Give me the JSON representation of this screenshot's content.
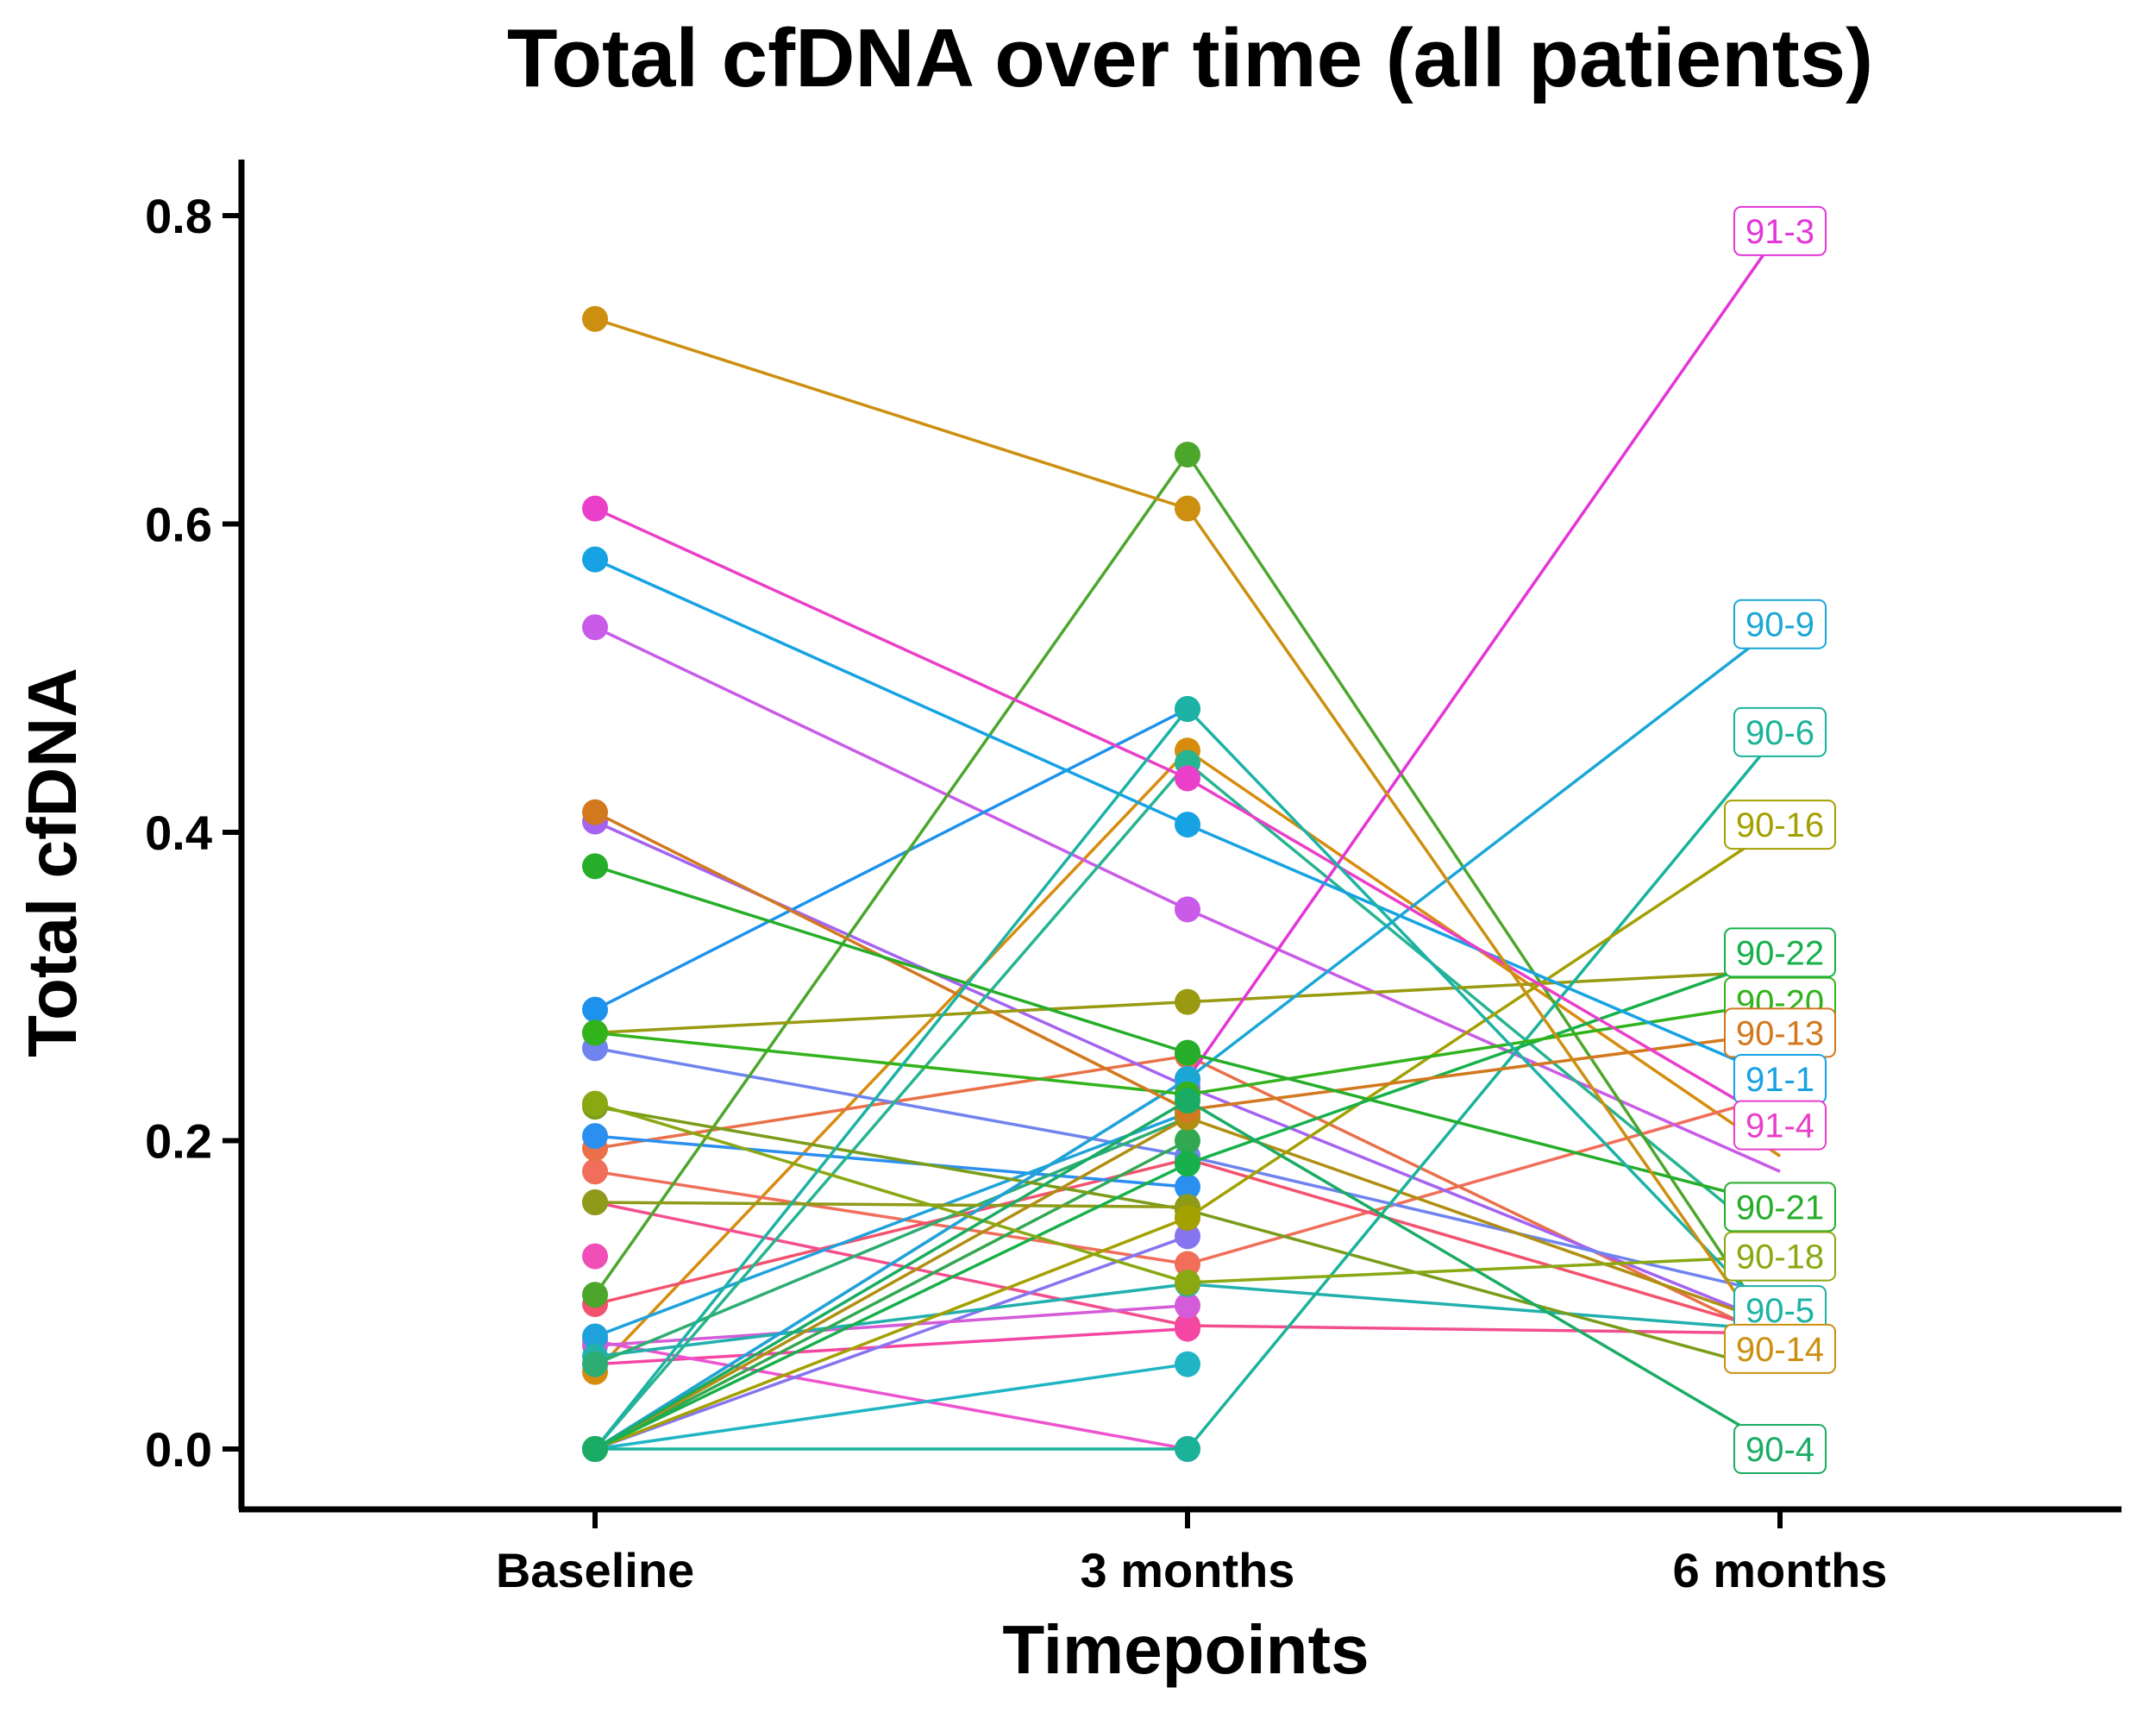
{
  "chart_data": {
    "type": "line",
    "title": "Total cfDNA over time (all patients)",
    "xlabel": "Timepoints",
    "ylabel": "Total cfDNA",
    "categories": [
      "Baseline",
      "3 months",
      "6 months"
    ],
    "ylim": [
      -0.04,
      0.83
    ],
    "yticks": [
      0.0,
      0.2,
      0.4,
      0.6,
      0.8
    ],
    "ytick_labels": [
      "0.0",
      "0.2",
      "0.4",
      "0.6",
      "0.8"
    ],
    "grid": false,
    "legend": "none",
    "series": [
      {
        "name": "91-3",
        "color": "#e335d8",
        "values": [
          0.0,
          0.24,
          0.79
        ]
      },
      {
        "name": "90-9",
        "color": "#1aa7d6",
        "values": [
          0.0,
          0.24,
          0.535
        ]
      },
      {
        "name": "90-6",
        "color": "#1ab39a",
        "values": [
          0.0,
          0.0,
          0.465
        ]
      },
      {
        "name": "90-16",
        "color": "#a3a000",
        "values": [
          0.0,
          0.15,
          0.405
        ]
      },
      {
        "name": "90-22",
        "color": "#17b04a",
        "values": [
          0.0,
          0.185,
          0.32
        ]
      },
      {
        "name": "90-20",
        "color": "#32b31c",
        "values": [
          0.27,
          0.23,
          0.29
        ]
      },
      {
        "name": "90-13",
        "color": "#d2781e",
        "values": [
          0.413,
          0.22,
          0.27
        ]
      },
      {
        "name": "91-1",
        "color": "#16a2e3",
        "values": [
          0.577,
          0.405,
          0.24
        ]
      },
      {
        "name": "91-4",
        "color": "#ea3fc8",
        "values": [
          0.61,
          0.435,
          0.21
        ]
      },
      {
        "name": "90-21",
        "color": "#26ad2a",
        "values": [
          0.378,
          0.257,
          0.158
        ]
      },
      {
        "name": "90-18",
        "color": "#8aa812",
        "values": [
          0.224,
          0.108,
          0.125
        ]
      },
      {
        "name": "90-5",
        "color": "#1cb2a5",
        "values": [
          0.0,
          0.48,
          0.08
        ]
      },
      {
        "name": "90-14",
        "color": "#cc8f10",
        "values": [
          0.733,
          0.61,
          0.06
        ]
      },
      {
        "name": "90-4",
        "color": "#1aac64",
        "values": [
          0.0,
          0.226,
          0.0
        ]
      }
    ],
    "extra_series": [
      {
        "color": "#d78c0e",
        "values": [
          0.05,
          0.453,
          0.19
        ]
      },
      {
        "color": "#f06e5a",
        "values": [
          0.18,
          0.12,
          0.23
        ]
      },
      {
        "color": "#e97048",
        "values": [
          0.195,
          0.255,
          0.07
        ]
      },
      {
        "color": "#f2526e",
        "values": [
          0.094,
          0.188,
          0.075
        ]
      },
      {
        "color": "#f24e8e",
        "values": [
          0.16,
          0.08,
          0.075
        ]
      },
      {
        "color": "#f446a3",
        "values": [
          0.055,
          0.078,
          null
        ]
      },
      {
        "color": "#f04fb5",
        "values": [
          0.125,
          null,
          null
        ]
      },
      {
        "color": "#ee53ce",
        "values": [
          0.07,
          0.0,
          null
        ]
      },
      {
        "color": "#c95be8",
        "values": [
          0.533,
          0.35,
          0.18
        ]
      },
      {
        "color": "#a463f0",
        "values": [
          0.407,
          0.235,
          0.08
        ]
      },
      {
        "color": "#8675ef",
        "values": [
          0.0,
          0.138,
          null
        ]
      },
      {
        "color": "#d45cd9",
        "values": [
          0.067,
          0.093,
          null
        ]
      },
      {
        "color": "#6f84ef",
        "values": [
          0.26,
          0.19,
          0.1
        ]
      },
      {
        "color": "#2b8ff0",
        "values": [
          0.203,
          0.17,
          null
        ]
      },
      {
        "color": "#1d92ec",
        "values": [
          0.285,
          0.48,
          null
        ]
      },
      {
        "color": "#1fa2dc",
        "values": [
          0.073,
          0.218,
          null
        ]
      },
      {
        "color": "#1fb5c4",
        "values": [
          0.0,
          0.055,
          null
        ]
      },
      {
        "color": "#22b0ad",
        "values": [
          0.06,
          0.107,
          0.077
        ]
      },
      {
        "color": "#27b491",
        "values": [
          0.0,
          0.445,
          0.13
        ]
      },
      {
        "color": "#2dad73",
        "values": [
          0.055,
          0.215,
          null
        ]
      },
      {
        "color": "#33a852",
        "values": [
          0.0,
          0.2,
          null
        ]
      },
      {
        "color": "#4ca62c",
        "values": [
          0.1,
          0.645,
          0.07
        ]
      },
      {
        "color": "#7a9c1a",
        "values": [
          0.222,
          0.155,
          0.05
        ]
      },
      {
        "color": "#999a11",
        "values": [
          0.27,
          0.29,
          0.31
        ]
      },
      {
        "color": "#8e9a18",
        "values": [
          0.16,
          0.157,
          null
        ]
      },
      {
        "color": "#b18e12",
        "values": [
          0.0,
          0.215,
          0.08
        ]
      }
    ]
  }
}
